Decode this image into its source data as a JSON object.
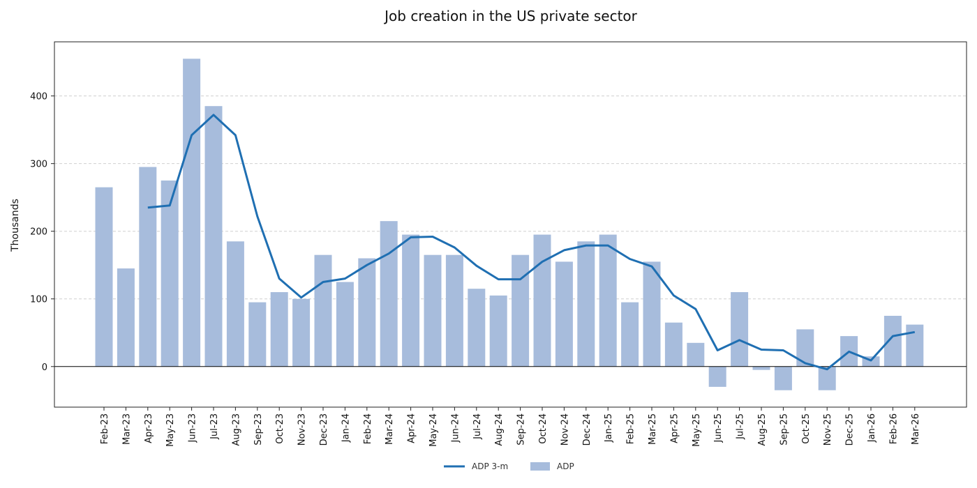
{
  "chart_data": {
    "type": "bar",
    "title": "Job creation in the US private sector",
    "xlabel": "",
    "ylabel": "Thousands",
    "ylim": [
      -60,
      480
    ],
    "yticks": [
      0,
      100,
      200,
      300,
      400
    ],
    "grid": true,
    "legend_position": "bottom-center",
    "bar_color": "#a7bcdc",
    "line_color": "#1f6fb2",
    "categories": [
      "Feb-23",
      "Mar-23",
      "Apr-23",
      "May-23",
      "Jun-23",
      "Jul-23",
      "Aug-23",
      "Sep-23",
      "Oct-23",
      "Nov-23",
      "Dec-23",
      "Jan-24",
      "Feb-24",
      "Mar-24",
      "Apr-24",
      "May-24",
      "Jun-24",
      "Jul-24",
      "Aug-24",
      "Sep-24",
      "Oct-24",
      "Nov-24",
      "Dec-24",
      "Jan-25",
      "Feb-25",
      "Mar-25",
      "Apr-25",
      "May-25",
      "Jun-25",
      "Jul-25",
      "Aug-25",
      "Sep-25",
      "Oct-25",
      "Nov-25",
      "Dec-25",
      "Jan-26",
      "Feb-26",
      "Mar-26"
    ],
    "series": [
      {
        "name": "ADP 3-m",
        "kind": "line",
        "values": [
          null,
          null,
          235,
          238,
          342,
          372,
          342,
          222,
          130,
          102,
          125,
          130,
          150,
          167,
          191,
          192,
          176,
          149,
          129,
          129,
          155,
          172,
          179,
          179,
          159,
          148,
          105,
          85,
          24,
          39,
          25,
          24,
          5,
          -4,
          22,
          9,
          45,
          51
        ]
      },
      {
        "name": "ADP",
        "kind": "bar",
        "values": [
          265,
          145,
          295,
          275,
          455,
          385,
          185,
          95,
          110,
          100,
          165,
          125,
          160,
          215,
          195,
          165,
          165,
          115,
          105,
          165,
          195,
          155,
          185,
          195,
          95,
          155,
          65,
          35,
          -30,
          110,
          -5,
          -35,
          55,
          -35,
          45,
          15,
          75,
          62
        ]
      }
    ]
  }
}
